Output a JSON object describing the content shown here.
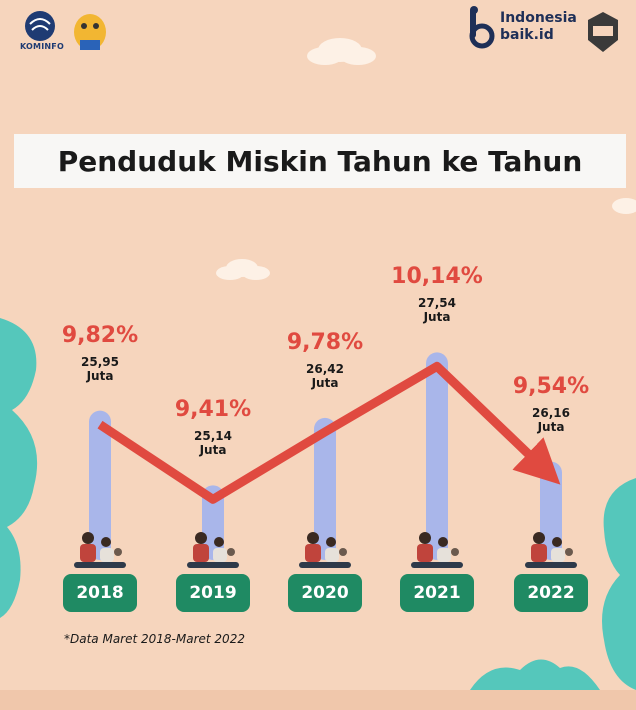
{
  "header": {
    "left_logo_text": "KOMINFO",
    "right_logo_line1": "Indonesia",
    "right_logo_line2": "baik.id"
  },
  "title": "Penduduk Miskin Tahun ke Tahun",
  "footnote": "*Data Maret 2018-Maret 2022",
  "colors": {
    "background": "#f6d5bd",
    "bar": "#a9b6ea",
    "trend": "#e04a40",
    "year_button": "#1f8a63",
    "tree": "#55c7bb"
  },
  "chart_data": {
    "type": "bar",
    "categories": [
      "2018",
      "2019",
      "2020",
      "2021",
      "2022"
    ],
    "series": [
      {
        "values": [
          9.82,
          9.41,
          9.78,
          10.14,
          9.54
        ],
        "labels": [
          "9,82%",
          "9,41%",
          "9,78%",
          "10,14%",
          "9,54%"
        ]
      },
      {
        "values": [
          25.95,
          25.14,
          26.42,
          27.54,
          26.16
        ],
        "labels": [
          "25,95\nJuta",
          "25,14\nJuta",
          "26,42\nJuta",
          "27,54\nJuta",
          "26,16\nJuta"
        ]
      }
    ],
    "trend": "line",
    "title": "Penduduk Miskin Tahun ke Tahun",
    "xlabel": "",
    "ylabel": "",
    "ylim": [
      9.0,
      10.4
    ],
    "grid": false,
    "legend": "none"
  }
}
